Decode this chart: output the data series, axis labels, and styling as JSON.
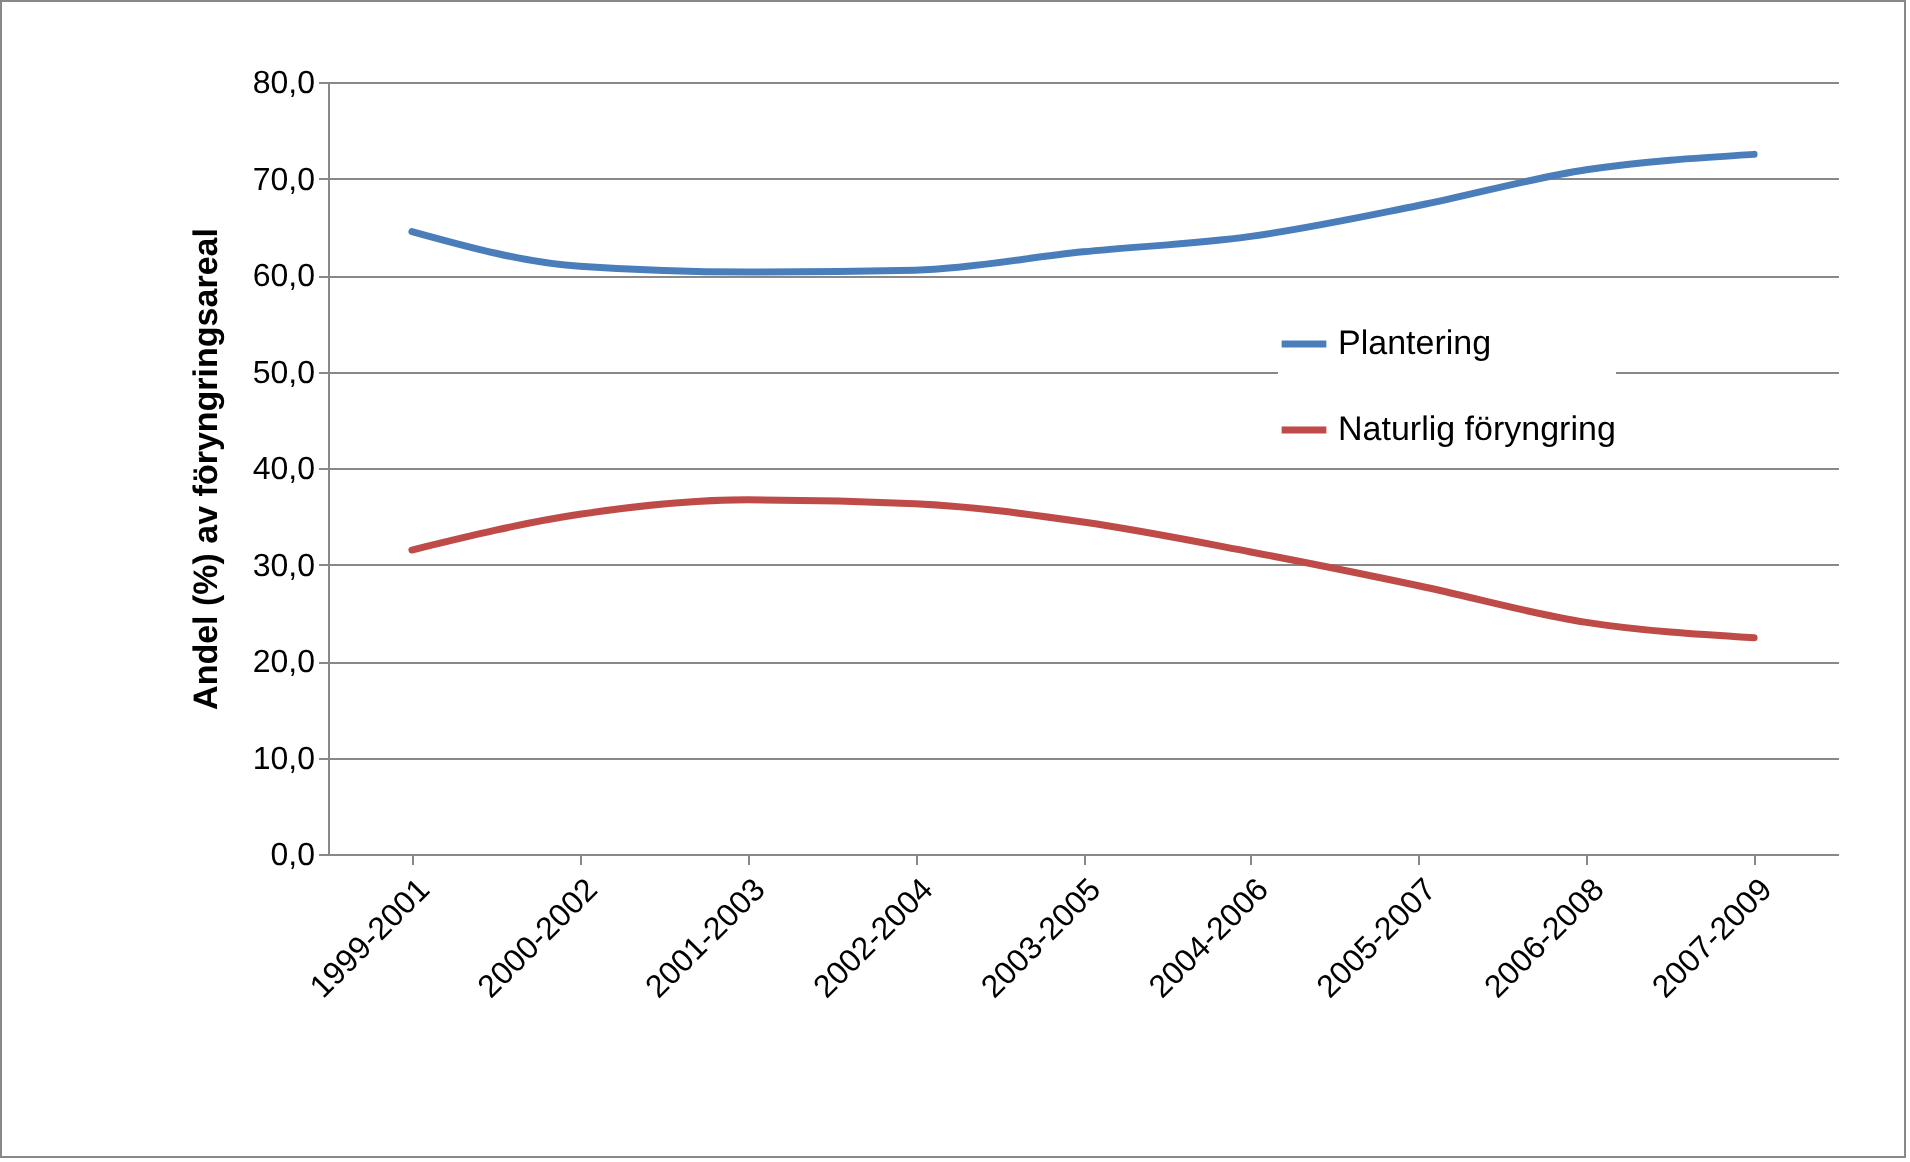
{
  "chart_data": {
    "type": "line",
    "ylabel": "Andel (%) av föryngringsareal",
    "categories": [
      "1999-2001",
      "2000-2002",
      "2001-2003",
      "2002-2004",
      "2003-2005",
      "2004-2006",
      "2005-2007",
      "2006-2008",
      "2007-2009"
    ],
    "series": [
      {
        "name": "Plantering",
        "color": "#4a7ebb",
        "values": [
          64.5,
          60.9,
          60.3,
          60.5,
          62.4,
          64.0,
          67.2,
          70.9,
          72.5
        ]
      },
      {
        "name": "Naturlig föryngring",
        "color": "#be4b48",
        "values": [
          31.5,
          35.2,
          36.7,
          36.3,
          34.4,
          31.3,
          27.8,
          24.0,
          22.4
        ]
      }
    ],
    "ylim": [
      0,
      80
    ],
    "yticks": [
      {
        "value": 0,
        "label": "0,0"
      },
      {
        "value": 10,
        "label": "10,0"
      },
      {
        "value": 20,
        "label": "20,0"
      },
      {
        "value": 30,
        "label": "30,0"
      },
      {
        "value": 40,
        "label": "40,0"
      },
      {
        "value": 50,
        "label": "50,0"
      },
      {
        "value": 60,
        "label": "60,0"
      },
      {
        "value": 70,
        "label": "70,0"
      },
      {
        "value": 80,
        "label": "80,0"
      }
    ],
    "grid": "y",
    "legend": "right",
    "marker": "none",
    "line_style": "solid"
  }
}
